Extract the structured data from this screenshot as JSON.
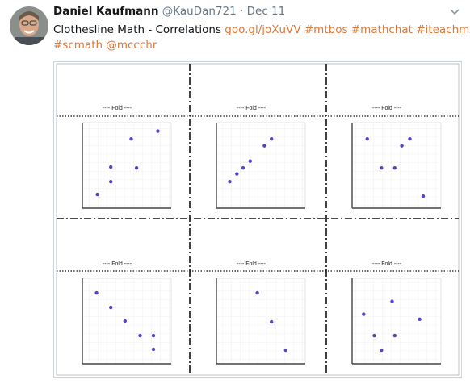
{
  "tweet": {
    "author": "Daniel Kaufmann",
    "handle": "@KauDan721",
    "separator": "·",
    "date": "Dec 11",
    "text": "Clothesline Math - Correlations",
    "links": [
      "goo.gl/joXuVV",
      "#mtbos",
      "#mathchat",
      "#iteachmath",
      "#scmath",
      "@mccchr"
    ]
  },
  "image": {
    "xlim": [
      0,
      10
    ],
    "ylim": [
      0,
      10
    ],
    "panels": [
      {
        "fold_label": "---- Fold ----",
        "x": [
          1.7,
          3.2,
          3.2,
          5.5,
          6.1,
          8.5
        ],
        "y": [
          1.6,
          3.1,
          4.8,
          8.1,
          4.7,
          9.0
        ]
      },
      {
        "fold_label": "---- Fold ----",
        "x": [
          1.5,
          2.3,
          3.0,
          3.8,
          5.4,
          6.2
        ],
        "y": [
          3.1,
          4.0,
          4.7,
          5.5,
          7.3,
          8.1
        ]
      },
      {
        "fold_label": "---- Fold ----",
        "x": [
          1.7,
          3.3,
          4.8,
          5.6,
          6.5,
          8.0
        ],
        "y": [
          8.1,
          4.7,
          4.7,
          7.3,
          8.1,
          1.4
        ]
      },
      {
        "fold_label": "---- Fold ----",
        "x": [
          1.6,
          3.2,
          4.8,
          6.5,
          8.0,
          8.0
        ],
        "y": [
          8.3,
          6.6,
          5.0,
          3.3,
          3.3,
          1.7
        ]
      },
      {
        "fold_label": "---- Fold ----",
        "x": [
          4.6,
          6.2,
          7.8
        ],
        "y": [
          8.3,
          4.9,
          1.6
        ]
      },
      {
        "fold_label": "---- Fold ----",
        "x": [
          1.3,
          2.5,
          3.3,
          4.5,
          4.8,
          7.6
        ],
        "y": [
          5.8,
          3.3,
          1.6,
          7.3,
          3.3,
          5.2
        ]
      }
    ]
  }
}
